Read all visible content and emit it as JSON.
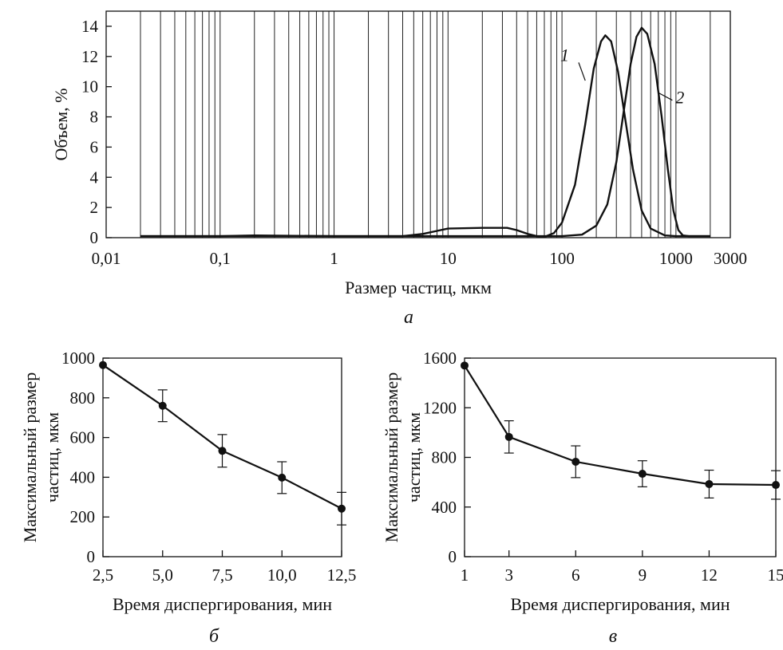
{
  "chart_data": [
    {
      "id": "a",
      "type": "line",
      "caption": "а",
      "xlabel": "Размер частиц, мкм",
      "ylabel": "Объем, %",
      "x_scale": "log",
      "xlim": [
        0.01,
        3000
      ],
      "ylim": [
        0,
        15
      ],
      "x_ticks": [
        0.01,
        0.1,
        1,
        10,
        100,
        1000,
        3000
      ],
      "x_tick_labels": [
        "0,01",
        "0,1",
        "1",
        "10",
        "100",
        "1000",
        "3000"
      ],
      "y_ticks": [
        0,
        2,
        4,
        6,
        8,
        10,
        12,
        14
      ],
      "y_tick_labels": [
        "0",
        "2",
        "4",
        "6",
        "8",
        "10",
        "12",
        "14"
      ],
      "grid_x": [
        0.02,
        0.03,
        0.04,
        0.05,
        0.06,
        0.07,
        0.08,
        0.09,
        0.1,
        0.2,
        0.3,
        0.4,
        0.5,
        0.6,
        0.7,
        0.8,
        0.9,
        1,
        2,
        3,
        4,
        5,
        6,
        7,
        8,
        9,
        10,
        20,
        30,
        40,
        50,
        60,
        70,
        80,
        90,
        100,
        200,
        300,
        400,
        500,
        600,
        700,
        800,
        900,
        1000,
        2000
      ],
      "series": [
        {
          "name": "1",
          "points": [
            [
              0.02,
              0.1
            ],
            [
              0.1,
              0.1
            ],
            [
              0.2,
              0.15
            ],
            [
              1,
              0.1
            ],
            [
              2,
              0.1
            ],
            [
              4,
              0.1
            ],
            [
              6,
              0.25
            ],
            [
              8,
              0.45
            ],
            [
              10,
              0.6
            ],
            [
              20,
              0.65
            ],
            [
              33,
              0.65
            ],
            [
              40,
              0.5
            ],
            [
              50,
              0.25
            ],
            [
              60,
              0.1
            ],
            [
              70,
              0.05
            ],
            [
              85,
              0.3
            ],
            [
              100,
              1.0
            ],
            [
              130,
              3.5
            ],
            [
              160,
              7.5
            ],
            [
              190,
              11.2
            ],
            [
              220,
              13.0
            ],
            [
              240,
              13.4
            ],
            [
              270,
              13.0
            ],
            [
              310,
              11.0
            ],
            [
              360,
              7.8
            ],
            [
              420,
              4.5
            ],
            [
              500,
              1.8
            ],
            [
              600,
              0.6
            ],
            [
              800,
              0.15
            ],
            [
              1000,
              0.1
            ],
            [
              1500,
              0.1
            ],
            [
              2000,
              0.1
            ]
          ]
        },
        {
          "name": "2",
          "points": [
            [
              0.02,
              0.1
            ],
            [
              1,
              0.1
            ],
            [
              2,
              0.1
            ],
            [
              100,
              0.1
            ],
            [
              150,
              0.2
            ],
            [
              200,
              0.8
            ],
            [
              250,
              2.2
            ],
            [
              300,
              5.0
            ],
            [
              350,
              8.5
            ],
            [
              400,
              11.5
            ],
            [
              450,
              13.3
            ],
            [
              500,
              13.9
            ],
            [
              560,
              13.5
            ],
            [
              650,
              11.5
            ],
            [
              750,
              8.0
            ],
            [
              850,
              4.5
            ],
            [
              950,
              1.8
            ],
            [
              1050,
              0.5
            ],
            [
              1150,
              0.15
            ],
            [
              1300,
              0.1
            ],
            [
              2000,
              0.1
            ]
          ]
        }
      ]
    },
    {
      "id": "b",
      "type": "line",
      "caption": "б",
      "xlabel": "Время диспергирования, мин",
      "ylabel_line1": "Максимальный размер",
      "ylabel_line2": "частиц, мкм",
      "xlim": [
        2.5,
        12.5
      ],
      "ylim": [
        0,
        1000
      ],
      "x_ticks": [
        2.5,
        5,
        7.5,
        10,
        12.5
      ],
      "x_tick_labels": [
        "2,5",
        "5,0",
        "7,5",
        "10,0",
        "12,5"
      ],
      "y_ticks": [
        0,
        200,
        400,
        600,
        800,
        1000
      ],
      "y_tick_labels": [
        "0",
        "200",
        "400",
        "600",
        "800",
        "1000"
      ],
      "x": [
        2.5,
        5,
        7.5,
        10,
        12.5
      ],
      "y": [
        965,
        760,
        533,
        398,
        242
      ],
      "error": [
        0,
        80,
        82,
        80,
        82
      ]
    },
    {
      "id": "c",
      "type": "line",
      "caption": "в",
      "xlabel": "Время диспергирования, мин",
      "ylabel_line1": "Максимальный размер",
      "ylabel_line2": "частиц, мкм",
      "xlim": [
        1,
        15
      ],
      "ylim": [
        0,
        1600
      ],
      "x_ticks": [
        1,
        3,
        6,
        9,
        12,
        15
      ],
      "x_tick_labels": [
        "1",
        "3",
        "6",
        "9",
        "12",
        "15"
      ],
      "y_ticks": [
        0,
        400,
        800,
        1200,
        1600
      ],
      "y_tick_labels": [
        "0",
        "400",
        "800",
        "1200",
        "1600"
      ],
      "x": [
        1,
        3,
        6,
        9,
        12,
        15
      ],
      "y": [
        1540,
        965,
        765,
        668,
        585,
        578
      ],
      "error": [
        0,
        130,
        128,
        105,
        112,
        115
      ]
    }
  ]
}
